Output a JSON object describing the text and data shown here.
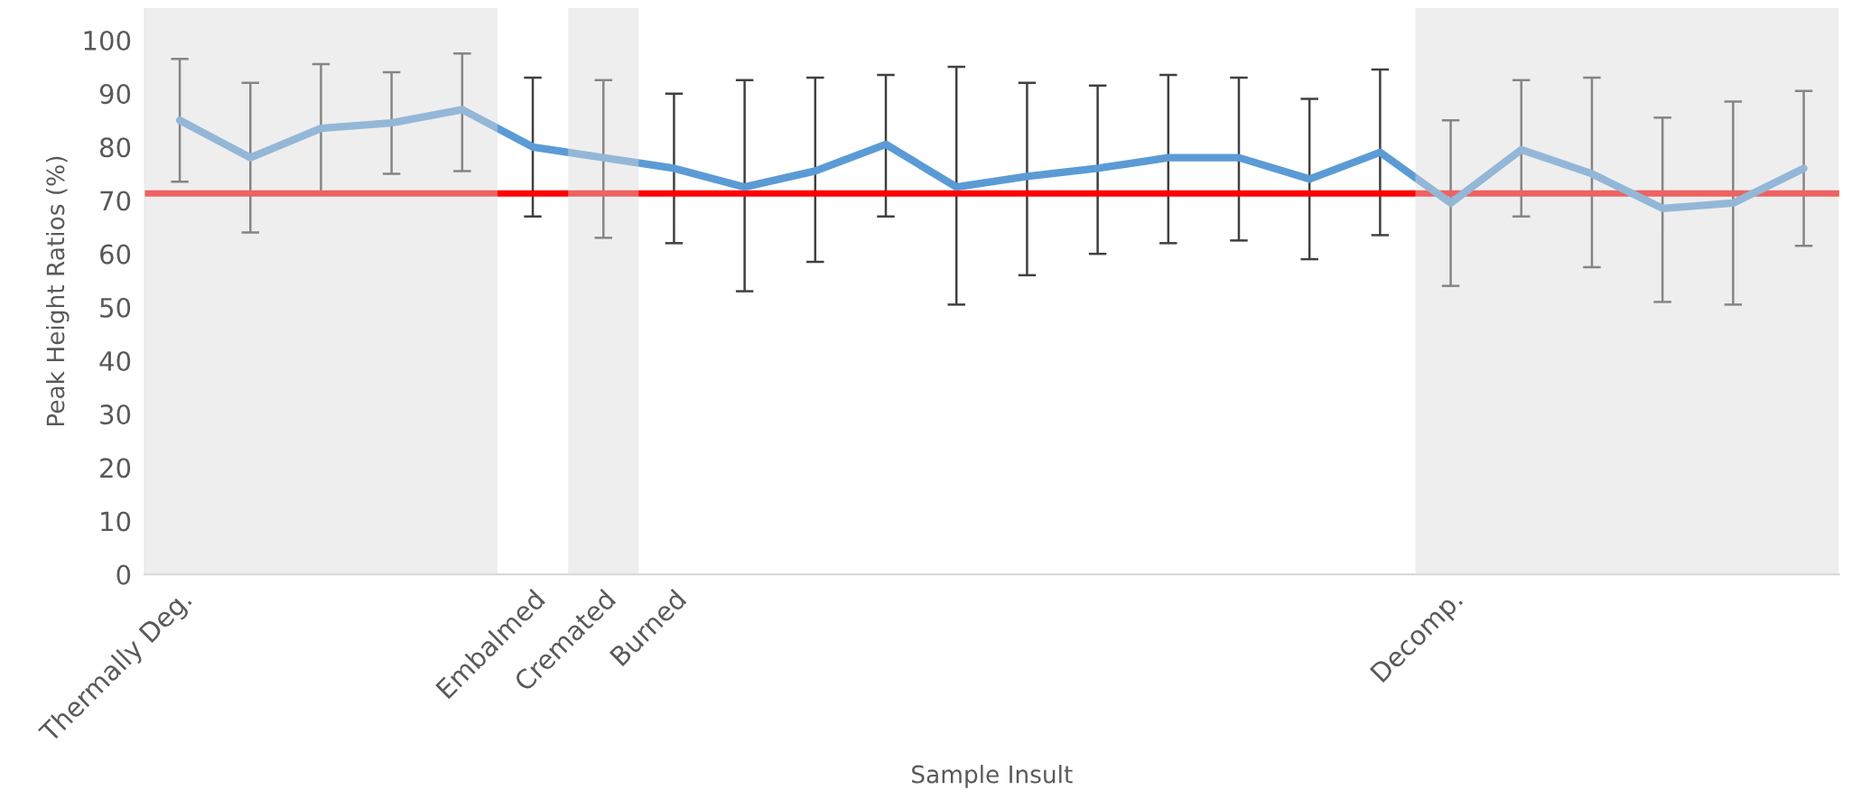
{
  "chart_data": {
    "type": "line",
    "xlabel": "Sample Insult",
    "ylabel": "Peak Height Ratios (%)",
    "categories": [
      "Thermally Deg.",
      null,
      null,
      null,
      null,
      "Embalmed",
      "Cremated",
      "Burned",
      null,
      null,
      null,
      null,
      null,
      null,
      null,
      null,
      null,
      null,
      "Decomp.",
      null,
      null,
      null,
      null,
      null
    ],
    "ylim": [
      0,
      106
    ],
    "yticks": [
      0,
      10,
      20,
      30,
      40,
      50,
      60,
      70,
      80,
      90,
      100
    ],
    "series": [
      {
        "color": "#5b9bd5",
        "values": [
          85,
          78,
          83.5,
          84.5,
          87,
          80,
          78,
          76,
          72.5,
          75.5,
          80.5,
          72.5,
          74.5,
          76,
          78,
          78,
          74,
          79,
          69.5,
          79.5,
          75,
          68.5,
          69.5,
          76
        ],
        "errors": [
          [
            73.5,
            96.5
          ],
          [
            64,
            92
          ],
          [
            71.5,
            95.5
          ],
          [
            75,
            94
          ],
          [
            75.5,
            97.5
          ],
          [
            67,
            93
          ],
          [
            63,
            92.5
          ],
          [
            62,
            90
          ],
          [
            53,
            92.5
          ],
          [
            58.5,
            93
          ],
          [
            67,
            93.5
          ],
          [
            50.5,
            95
          ],
          [
            56,
            92
          ],
          [
            60,
            91.5
          ],
          [
            62,
            93.5
          ],
          [
            62.5,
            93
          ],
          [
            59,
            89
          ],
          [
            63.5,
            94.5
          ],
          [
            54,
            85
          ],
          [
            67,
            92.5
          ],
          [
            57.5,
            93
          ],
          [
            51,
            85.5
          ],
          [
            50.5,
            88.5
          ],
          [
            61.5,
            90.5
          ]
        ]
      }
    ],
    "ref_lines": [
      {
        "axis": "y",
        "value": 71.3,
        "color": "#ff0000"
      }
    ],
    "bands": [
      {
        "axis": "x",
        "from": "Cremated",
        "to": "Cremated",
        "color": "#d9d9d9"
      }
    ],
    "grid": false,
    "legend": false,
    "marker": "none",
    "line_style": "solid"
  }
}
